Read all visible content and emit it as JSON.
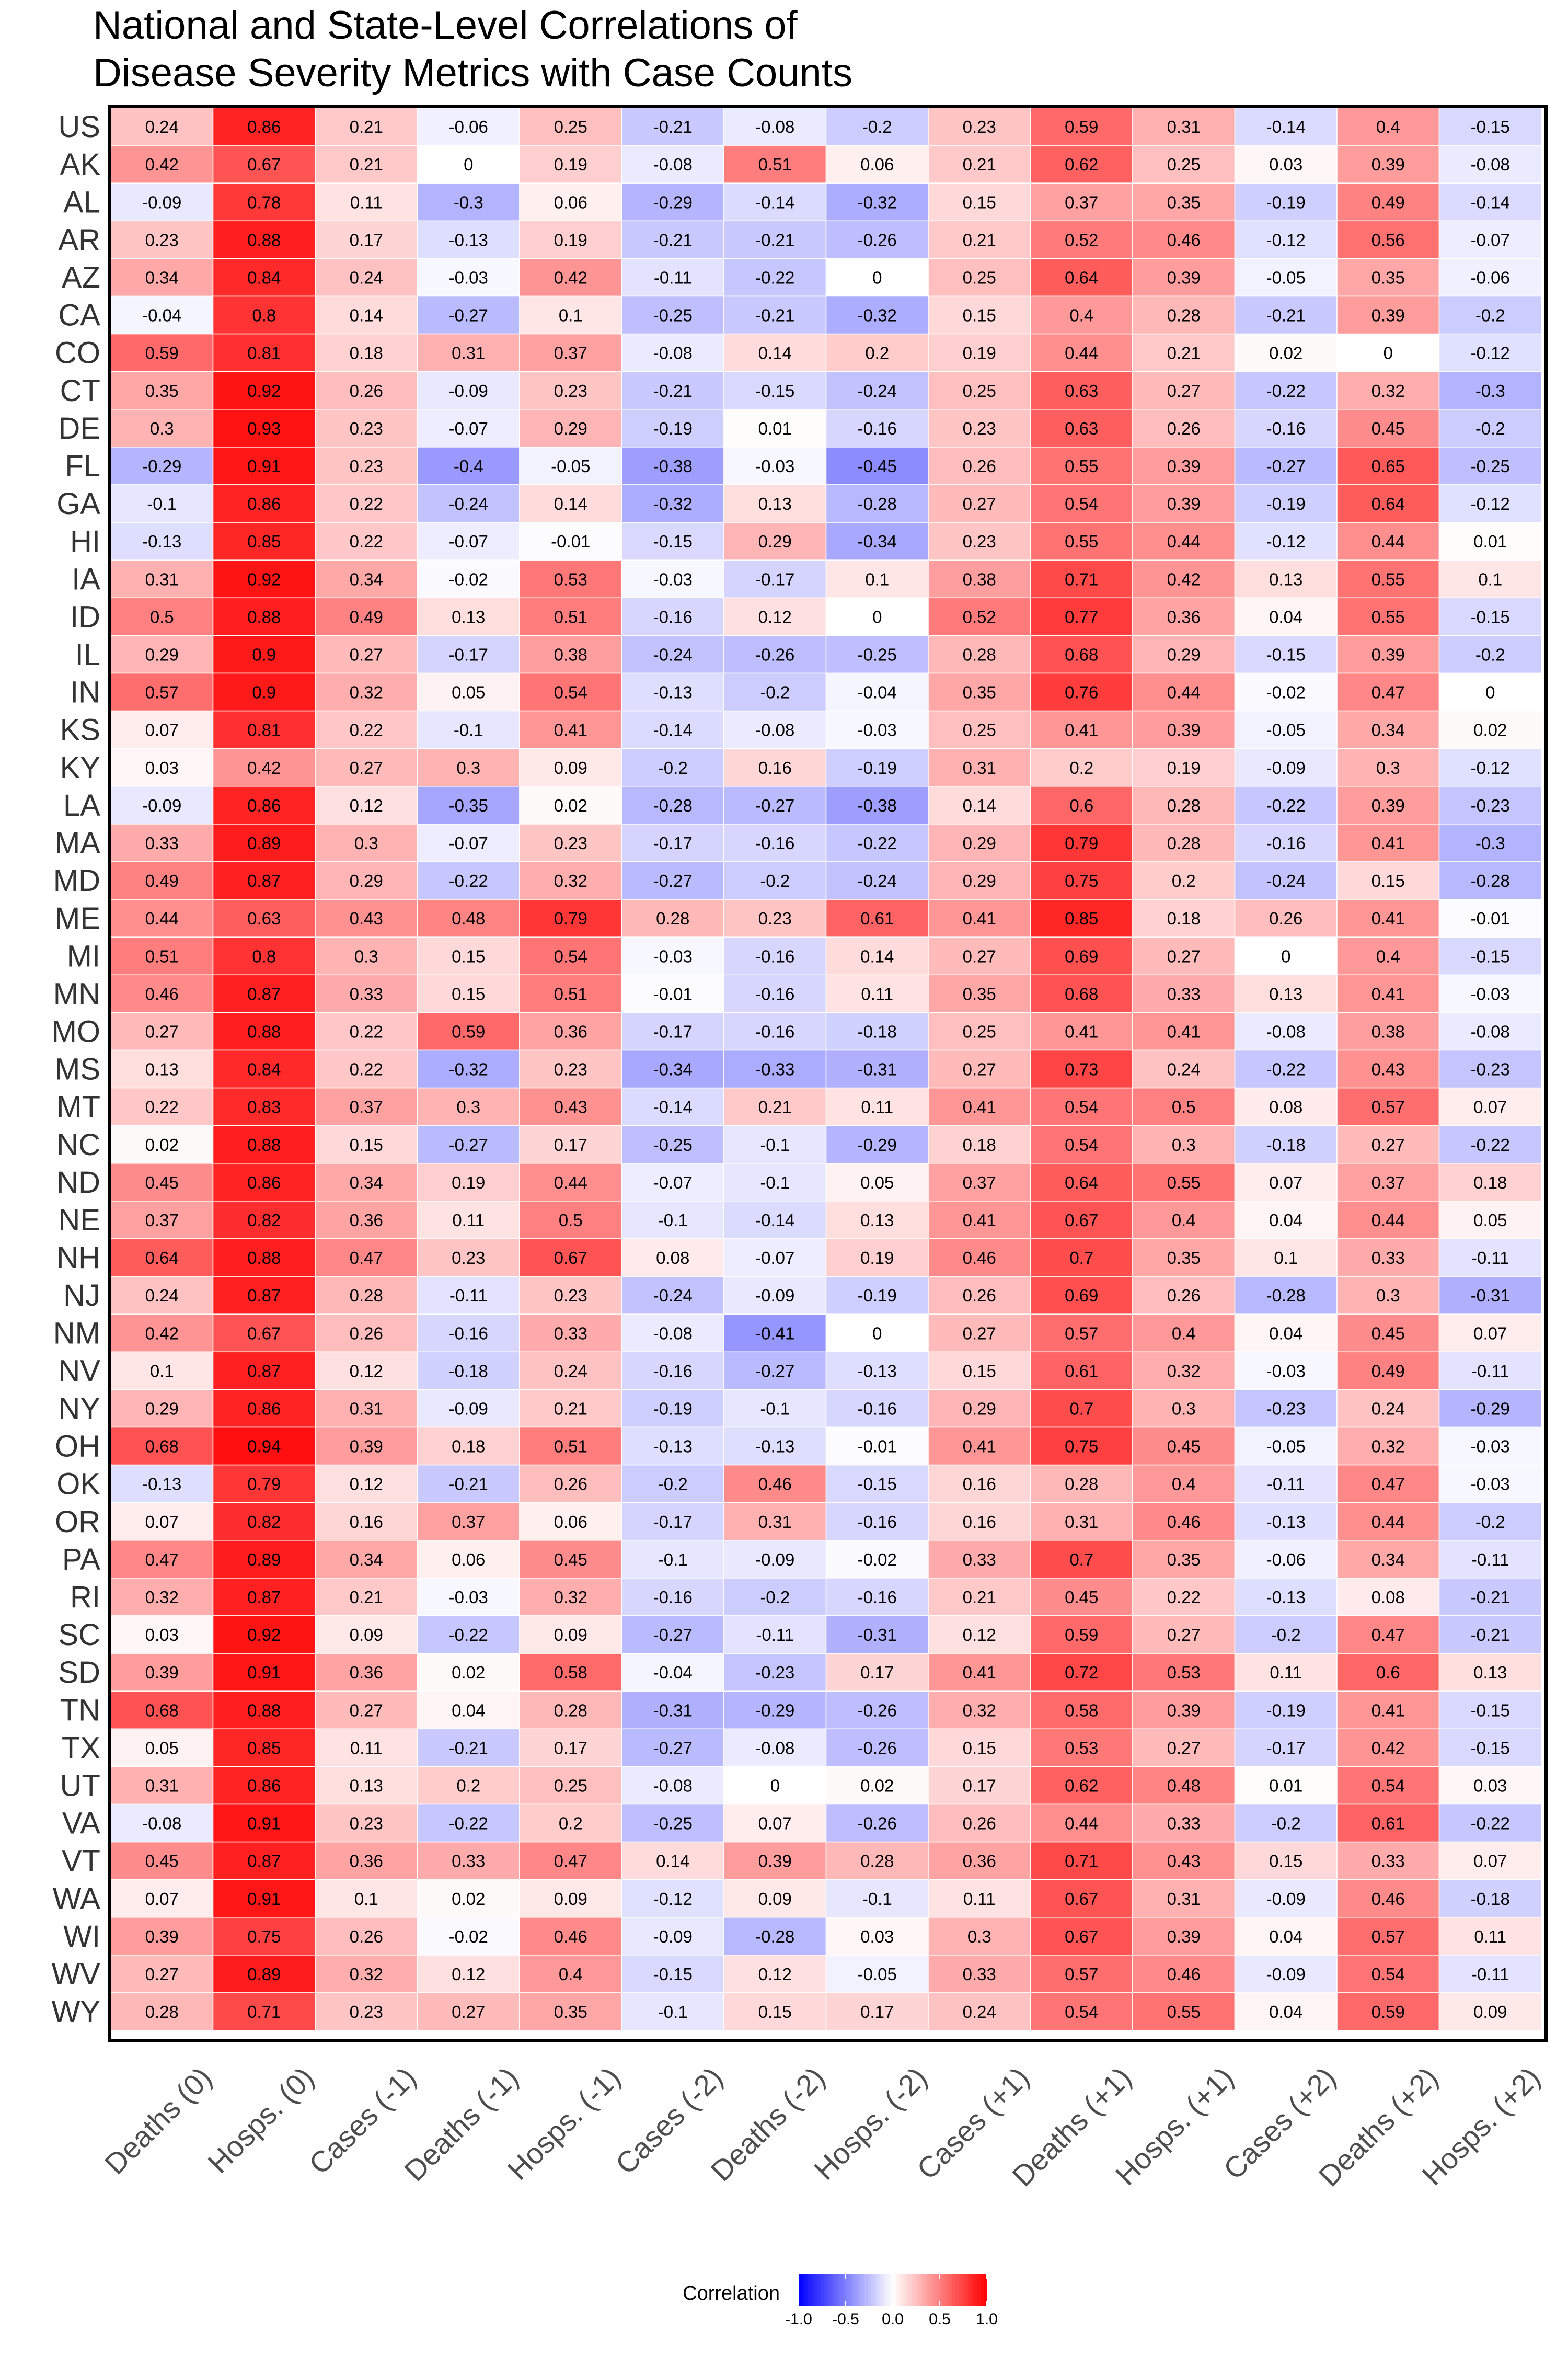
{
  "chart_data": {
    "type": "heatmap",
    "title": [
      "National and State-Level Correlations of",
      "Disease Severity Metrics with Case Counts"
    ],
    "rows": [
      "US",
      "AK",
      "AL",
      "AR",
      "AZ",
      "CA",
      "CO",
      "CT",
      "DE",
      "FL",
      "GA",
      "HI",
      "IA",
      "ID",
      "IL",
      "IN",
      "KS",
      "KY",
      "LA",
      "MA",
      "MD",
      "ME",
      "MI",
      "MN",
      "MO",
      "MS",
      "MT",
      "NC",
      "ND",
      "NE",
      "NH",
      "NJ",
      "NM",
      "NV",
      "NY",
      "OH",
      "OK",
      "OR",
      "PA",
      "RI",
      "SC",
      "SD",
      "TN",
      "TX",
      "UT",
      "VA",
      "VT",
      "WA",
      "WI",
      "WV",
      "WY"
    ],
    "columns": [
      "Deaths (0)",
      "Hosps. (0)",
      "Cases (-1)",
      "Deaths (-1)",
      "Hosps. (-1)",
      "Cases (-2)",
      "Deaths (-2)",
      "Hosps. (-2)",
      "Cases (+1)",
      "Deaths (+1)",
      "Hosps. (+1)",
      "Cases (+2)",
      "Deaths (+2)",
      "Hosps. (+2)"
    ],
    "values": [
      [
        0.24,
        0.86,
        0.21,
        -0.06,
        0.25,
        -0.21,
        -0.08,
        -0.2,
        0.23,
        0.59,
        0.31,
        -0.14,
        0.4,
        -0.15
      ],
      [
        0.42,
        0.67,
        0.21,
        0,
        0.19,
        -0.08,
        0.51,
        0.06,
        0.21,
        0.62,
        0.25,
        0.03,
        0.39,
        -0.08
      ],
      [
        -0.09,
        0.78,
        0.11,
        -0.3,
        0.06,
        -0.29,
        -0.14,
        -0.32,
        0.15,
        0.37,
        0.35,
        -0.19,
        0.49,
        -0.14
      ],
      [
        0.23,
        0.88,
        0.17,
        -0.13,
        0.19,
        -0.21,
        -0.21,
        -0.26,
        0.21,
        0.52,
        0.46,
        -0.12,
        0.56,
        -0.07
      ],
      [
        0.34,
        0.84,
        0.24,
        -0.03,
        0.42,
        -0.11,
        -0.22,
        0,
        0.25,
        0.64,
        0.39,
        -0.05,
        0.35,
        -0.06
      ],
      [
        -0.04,
        0.8,
        0.14,
        -0.27,
        0.1,
        -0.25,
        -0.21,
        -0.32,
        0.15,
        0.4,
        0.28,
        -0.21,
        0.39,
        -0.2
      ],
      [
        0.59,
        0.81,
        0.18,
        0.31,
        0.37,
        -0.08,
        0.14,
        0.2,
        0.19,
        0.44,
        0.21,
        0.02,
        0,
        -0.12
      ],
      [
        0.35,
        0.92,
        0.26,
        -0.09,
        0.23,
        -0.21,
        -0.15,
        -0.24,
        0.25,
        0.63,
        0.27,
        -0.22,
        0.32,
        -0.3
      ],
      [
        0.3,
        0.93,
        0.23,
        -0.07,
        0.29,
        -0.19,
        0.01,
        -0.16,
        0.23,
        0.63,
        0.26,
        -0.16,
        0.45,
        -0.2
      ],
      [
        -0.29,
        0.91,
        0.23,
        -0.4,
        -0.05,
        -0.38,
        -0.03,
        -0.45,
        0.26,
        0.55,
        0.39,
        -0.27,
        0.65,
        -0.25
      ],
      [
        -0.1,
        0.86,
        0.22,
        -0.24,
        0.14,
        -0.32,
        0.13,
        -0.28,
        0.27,
        0.54,
        0.39,
        -0.19,
        0.64,
        -0.12
      ],
      [
        -0.13,
        0.85,
        0.22,
        -0.07,
        -0.01,
        -0.15,
        0.29,
        -0.34,
        0.23,
        0.55,
        0.44,
        -0.12,
        0.44,
        0.01
      ],
      [
        0.31,
        0.92,
        0.34,
        -0.02,
        0.53,
        -0.03,
        -0.17,
        0.1,
        0.38,
        0.71,
        0.42,
        0.13,
        0.55,
        0.1
      ],
      [
        0.5,
        0.88,
        0.49,
        0.13,
        0.51,
        -0.16,
        0.12,
        0,
        0.52,
        0.77,
        0.36,
        0.04,
        0.55,
        -0.15
      ],
      [
        0.29,
        0.9,
        0.27,
        -0.17,
        0.38,
        -0.24,
        -0.26,
        -0.25,
        0.28,
        0.68,
        0.29,
        -0.15,
        0.39,
        -0.2
      ],
      [
        0.57,
        0.9,
        0.32,
        0.05,
        0.54,
        -0.13,
        -0.2,
        -0.04,
        0.35,
        0.76,
        0.44,
        -0.02,
        0.47,
        0
      ],
      [
        0.07,
        0.81,
        0.22,
        -0.1,
        0.41,
        -0.14,
        -0.08,
        -0.03,
        0.25,
        0.41,
        0.39,
        -0.05,
        0.34,
        0.02
      ],
      [
        0.03,
        0.42,
        0.27,
        0.3,
        0.09,
        -0.2,
        0.16,
        -0.19,
        0.31,
        0.2,
        0.19,
        -0.09,
        0.3,
        -0.12
      ],
      [
        -0.09,
        0.86,
        0.12,
        -0.35,
        0.02,
        -0.28,
        -0.27,
        -0.38,
        0.14,
        0.6,
        0.28,
        -0.22,
        0.39,
        -0.23
      ],
      [
        0.33,
        0.89,
        0.3,
        -0.07,
        0.23,
        -0.17,
        -0.16,
        -0.22,
        0.29,
        0.79,
        0.28,
        -0.16,
        0.41,
        -0.3
      ],
      [
        0.49,
        0.87,
        0.29,
        -0.22,
        0.32,
        -0.27,
        -0.2,
        -0.24,
        0.29,
        0.75,
        0.2,
        -0.24,
        0.15,
        -0.28
      ],
      [
        0.44,
        0.63,
        0.43,
        0.48,
        0.79,
        0.28,
        0.23,
        0.61,
        0.41,
        0.85,
        0.18,
        0.26,
        0.41,
        -0.01
      ],
      [
        0.51,
        0.8,
        0.3,
        0.15,
        0.54,
        -0.03,
        -0.16,
        0.14,
        0.27,
        0.69,
        0.27,
        0,
        0.4,
        -0.15
      ],
      [
        0.46,
        0.87,
        0.33,
        0.15,
        0.51,
        -0.01,
        -0.16,
        0.11,
        0.35,
        0.68,
        0.33,
        0.13,
        0.41,
        -0.03
      ],
      [
        0.27,
        0.88,
        0.22,
        0.59,
        0.36,
        -0.17,
        -0.16,
        -0.18,
        0.25,
        0.41,
        0.41,
        -0.08,
        0.38,
        -0.08
      ],
      [
        0.13,
        0.84,
        0.22,
        -0.32,
        0.23,
        -0.34,
        -0.33,
        -0.31,
        0.27,
        0.73,
        0.24,
        -0.22,
        0.43,
        -0.23
      ],
      [
        0.22,
        0.83,
        0.37,
        0.3,
        0.43,
        -0.14,
        0.21,
        0.11,
        0.41,
        0.54,
        0.5,
        0.08,
        0.57,
        0.07
      ],
      [
        0.02,
        0.88,
        0.15,
        -0.27,
        0.17,
        -0.25,
        -0.1,
        -0.29,
        0.18,
        0.54,
        0.3,
        -0.18,
        0.27,
        -0.22
      ],
      [
        0.45,
        0.86,
        0.34,
        0.19,
        0.44,
        -0.07,
        -0.1,
        0.05,
        0.37,
        0.64,
        0.55,
        0.07,
        0.37,
        0.18
      ],
      [
        0.37,
        0.82,
        0.36,
        0.11,
        0.5,
        -0.1,
        -0.14,
        0.13,
        0.41,
        0.67,
        0.4,
        0.04,
        0.44,
        0.05
      ],
      [
        0.64,
        0.88,
        0.47,
        0.23,
        0.67,
        0.08,
        -0.07,
        0.19,
        0.46,
        0.7,
        0.35,
        0.1,
        0.33,
        -0.11
      ],
      [
        0.24,
        0.87,
        0.28,
        -0.11,
        0.23,
        -0.24,
        -0.09,
        -0.19,
        0.26,
        0.69,
        0.26,
        -0.28,
        0.3,
        -0.31
      ],
      [
        0.42,
        0.67,
        0.26,
        -0.16,
        0.33,
        -0.08,
        -0.41,
        0,
        0.27,
        0.57,
        0.4,
        0.04,
        0.45,
        0.07
      ],
      [
        0.1,
        0.87,
        0.12,
        -0.18,
        0.24,
        -0.16,
        -0.27,
        -0.13,
        0.15,
        0.61,
        0.32,
        -0.03,
        0.49,
        -0.11
      ],
      [
        0.29,
        0.86,
        0.31,
        -0.09,
        0.21,
        -0.19,
        -0.1,
        -0.16,
        0.29,
        0.7,
        0.3,
        -0.23,
        0.24,
        -0.29
      ],
      [
        0.68,
        0.94,
        0.39,
        0.18,
        0.51,
        -0.13,
        -0.13,
        -0.01,
        0.41,
        0.75,
        0.45,
        -0.05,
        0.32,
        -0.03
      ],
      [
        -0.13,
        0.79,
        0.12,
        -0.21,
        0.26,
        -0.2,
        0.46,
        -0.15,
        0.16,
        0.28,
        0.4,
        -0.11,
        0.47,
        -0.03
      ],
      [
        0.07,
        0.82,
        0.16,
        0.37,
        0.06,
        -0.17,
        0.31,
        -0.16,
        0.16,
        0.31,
        0.46,
        -0.13,
        0.44,
        -0.2
      ],
      [
        0.47,
        0.89,
        0.34,
        0.06,
        0.45,
        -0.1,
        -0.09,
        -0.02,
        0.33,
        0.7,
        0.35,
        -0.06,
        0.34,
        -0.11
      ],
      [
        0.32,
        0.87,
        0.21,
        -0.03,
        0.32,
        -0.16,
        -0.2,
        -0.16,
        0.21,
        0.45,
        0.22,
        -0.13,
        0.08,
        -0.21
      ],
      [
        0.03,
        0.92,
        0.09,
        -0.22,
        0.09,
        -0.27,
        -0.11,
        -0.31,
        0.12,
        0.59,
        0.27,
        -0.2,
        0.47,
        -0.21
      ],
      [
        0.39,
        0.91,
        0.36,
        0.02,
        0.58,
        -0.04,
        -0.23,
        0.17,
        0.41,
        0.72,
        0.53,
        0.11,
        0.6,
        0.13
      ],
      [
        0.68,
        0.88,
        0.27,
        0.04,
        0.28,
        -0.31,
        -0.29,
        -0.26,
        0.32,
        0.58,
        0.39,
        -0.19,
        0.41,
        -0.15
      ],
      [
        0.05,
        0.85,
        0.11,
        -0.21,
        0.17,
        -0.27,
        -0.08,
        -0.26,
        0.15,
        0.53,
        0.27,
        -0.17,
        0.42,
        -0.15
      ],
      [
        0.31,
        0.86,
        0.13,
        0.2,
        0.25,
        -0.08,
        0,
        0.02,
        0.17,
        0.62,
        0.48,
        0.01,
        0.54,
        0.03
      ],
      [
        -0.08,
        0.91,
        0.23,
        -0.22,
        0.2,
        -0.25,
        0.07,
        -0.26,
        0.26,
        0.44,
        0.33,
        -0.2,
        0.61,
        -0.22
      ],
      [
        0.45,
        0.87,
        0.36,
        0.33,
        0.47,
        0.14,
        0.39,
        0.28,
        0.36,
        0.71,
        0.43,
        0.15,
        0.33,
        0.07
      ],
      [
        0.07,
        0.91,
        0.1,
        0.02,
        0.09,
        -0.12,
        0.09,
        -0.1,
        0.11,
        0.67,
        0.31,
        -0.09,
        0.46,
        -0.18
      ],
      [
        0.39,
        0.75,
        0.26,
        -0.02,
        0.46,
        -0.09,
        -0.28,
        0.03,
        0.3,
        0.67,
        0.39,
        0.04,
        0.57,
        0.11
      ],
      [
        0.27,
        0.89,
        0.32,
        0.12,
        0.4,
        -0.15,
        0.12,
        -0.05,
        0.33,
        0.57,
        0.46,
        -0.09,
        0.54,
        -0.11
      ],
      [
        0.28,
        0.71,
        0.23,
        0.27,
        0.35,
        -0.1,
        0.15,
        0.17,
        0.24,
        0.54,
        0.55,
        0.04,
        0.59,
        0.09
      ]
    ],
    "legend": {
      "title": "Correlation",
      "range": [
        -1.0,
        1.0
      ],
      "ticks": [
        -1.0,
        -0.5,
        0.0,
        0.5,
        1.0
      ],
      "tick_labels": [
        "-1.0",
        "-0.5",
        "0.0",
        "0.5",
        "1.0"
      ],
      "placement": "bottom"
    },
    "colors": {
      "low": "#0000ff",
      "mid": "#ffffff",
      "high": "#ff0000",
      "border": "#000000"
    }
  }
}
